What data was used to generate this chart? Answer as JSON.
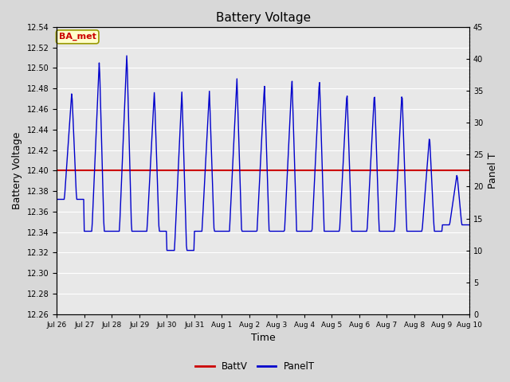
{
  "title": "Battery Voltage",
  "xlabel": "Time",
  "ylabel_left": "Battery Voltage",
  "ylabel_right": "Panel T",
  "legend_label": "BA_met",
  "batt_value": 12.4,
  "ylim_left": [
    12.26,
    12.54
  ],
  "ylim_right": [
    0,
    45
  ],
  "yticks_left": [
    12.26,
    12.28,
    12.3,
    12.32,
    12.34,
    12.36,
    12.38,
    12.4,
    12.42,
    12.44,
    12.46,
    12.48,
    12.5,
    12.52,
    12.54
  ],
  "yticks_right": [
    0,
    5,
    10,
    15,
    20,
    25,
    30,
    35,
    40,
    45
  ],
  "bg_color": "#e8e8e8",
  "line_color_batt": "#cc0000",
  "line_color_panel": "#0000cc",
  "annotation_bg": "#ffffcc",
  "annotation_border": "#999900",
  "annotation_text_color": "#cc0000",
  "x_tick_labels": [
    "Jul 26",
    "Jul 27",
    "Jul 28",
    "Jul 29",
    "Jul 30",
    "Jul 31",
    "Aug 1",
    "Aug 2",
    "Aug 3",
    "Aug 4",
    "Aug 5",
    "Aug 6",
    "Aug 7",
    "Aug 8",
    "Aug 9",
    "Aug 10"
  ],
  "n_days": 15,
  "figsize": [
    6.4,
    4.8
  ],
  "dpi": 100
}
